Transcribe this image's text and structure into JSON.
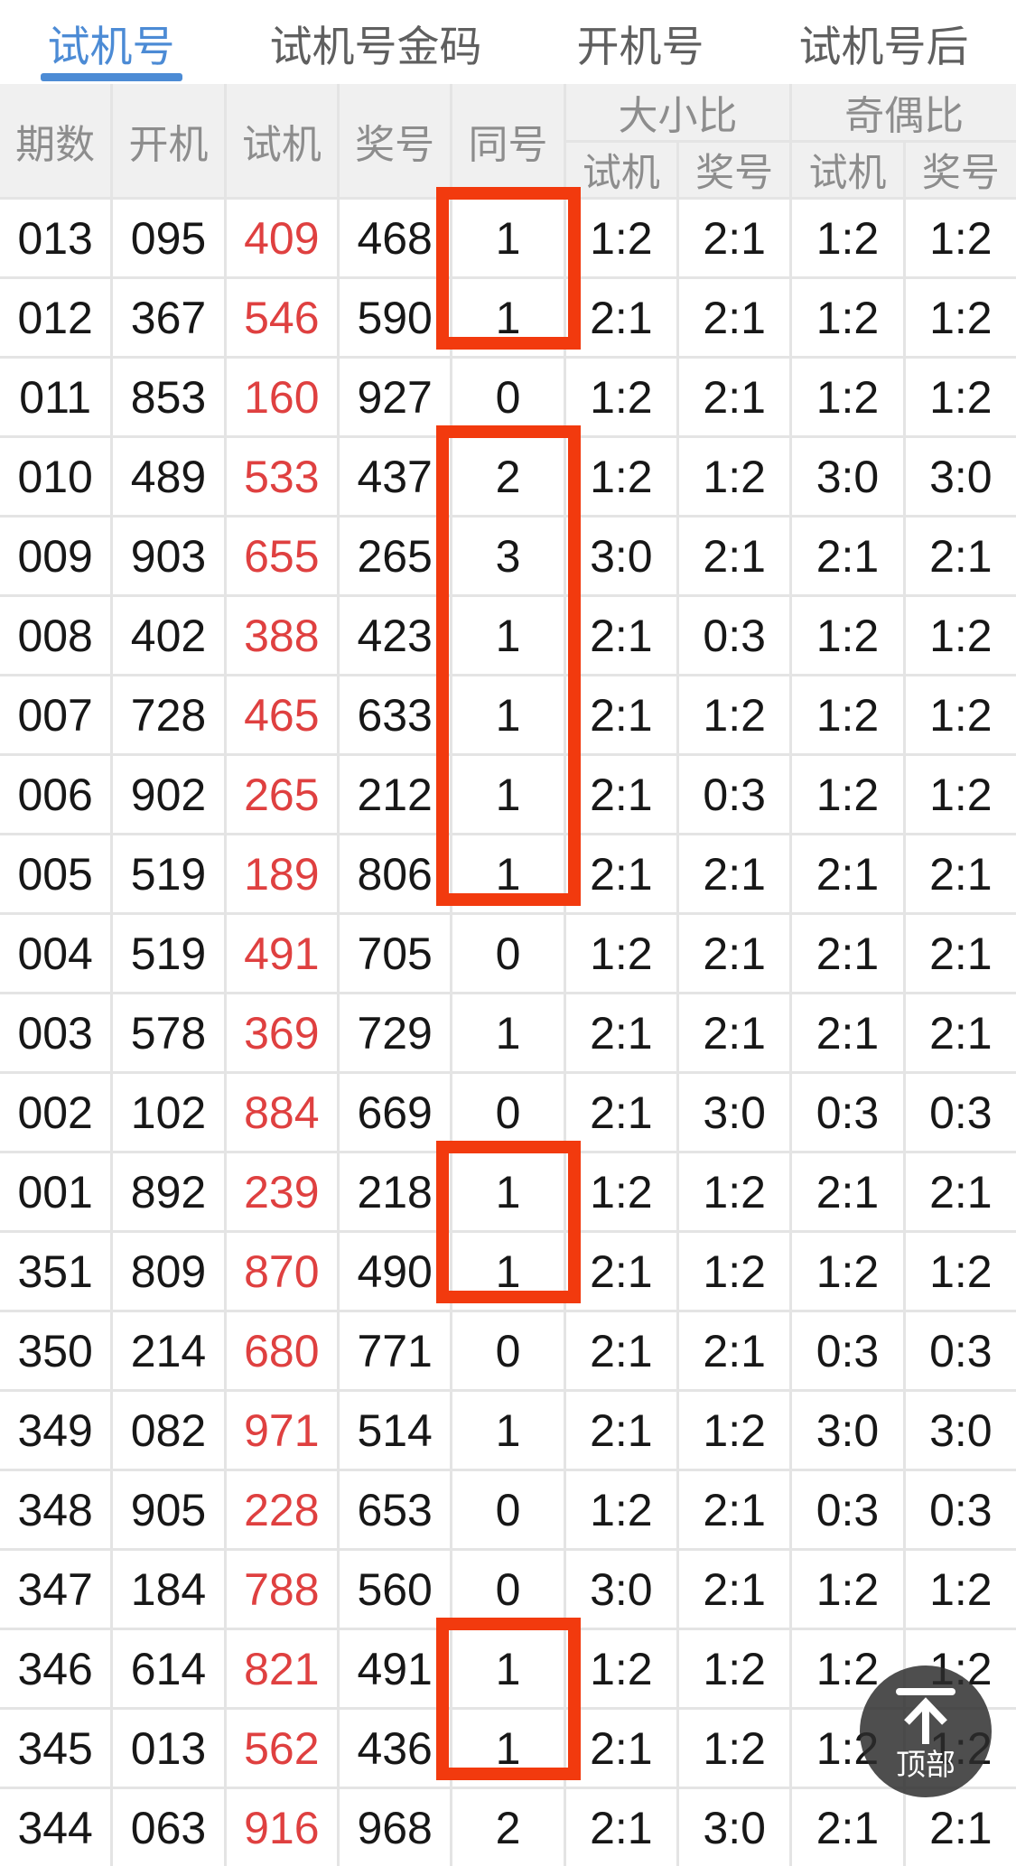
{
  "tabs": [
    {
      "label": "试机号",
      "active": true
    },
    {
      "label": "试机号金码",
      "active": false
    },
    {
      "label": "开机号",
      "active": false
    },
    {
      "label": "试机号后",
      "active": false
    }
  ],
  "table": {
    "headers": {
      "period": "期数",
      "open": "开机",
      "trial": "试机",
      "prize": "奖号",
      "same": "同号",
      "group_bigsmall": "大小比",
      "group_oddeven": "奇偶比",
      "sub_bigsmall_trial": "试机",
      "sub_bigsmall_prize": "奖号",
      "sub_oddeven_trial": "试机",
      "sub_oddeven_prize": "奖号"
    },
    "rows": [
      [
        "013",
        "095",
        "409",
        "468",
        "1",
        "1:2",
        "2:1",
        "1:2",
        "1:2"
      ],
      [
        "012",
        "367",
        "546",
        "590",
        "1",
        "2:1",
        "2:1",
        "1:2",
        "1:2"
      ],
      [
        "011",
        "853",
        "160",
        "927",
        "0",
        "1:2",
        "2:1",
        "1:2",
        "1:2"
      ],
      [
        "010",
        "489",
        "533",
        "437",
        "2",
        "1:2",
        "1:2",
        "3:0",
        "3:0"
      ],
      [
        "009",
        "903",
        "655",
        "265",
        "3",
        "3:0",
        "2:1",
        "2:1",
        "2:1"
      ],
      [
        "008",
        "402",
        "388",
        "423",
        "1",
        "2:1",
        "0:3",
        "1:2",
        "1:2"
      ],
      [
        "007",
        "728",
        "465",
        "633",
        "1",
        "2:1",
        "1:2",
        "1:2",
        "1:2"
      ],
      [
        "006",
        "902",
        "265",
        "212",
        "1",
        "2:1",
        "0:3",
        "1:2",
        "1:2"
      ],
      [
        "005",
        "519",
        "189",
        "806",
        "1",
        "2:1",
        "2:1",
        "2:1",
        "2:1"
      ],
      [
        "004",
        "519",
        "491",
        "705",
        "0",
        "1:2",
        "2:1",
        "2:1",
        "2:1"
      ],
      [
        "003",
        "578",
        "369",
        "729",
        "1",
        "2:1",
        "2:1",
        "2:1",
        "2:1"
      ],
      [
        "002",
        "102",
        "884",
        "669",
        "0",
        "2:1",
        "3:0",
        "0:3",
        "0:3"
      ],
      [
        "001",
        "892",
        "239",
        "218",
        "1",
        "1:2",
        "1:2",
        "2:1",
        "2:1"
      ],
      [
        "351",
        "809",
        "870",
        "490",
        "1",
        "2:1",
        "1:2",
        "1:2",
        "1:2"
      ],
      [
        "350",
        "214",
        "680",
        "771",
        "0",
        "2:1",
        "2:1",
        "0:3",
        "0:3"
      ],
      [
        "349",
        "082",
        "971",
        "514",
        "1",
        "2:1",
        "1:2",
        "3:0",
        "3:0"
      ],
      [
        "348",
        "905",
        "228",
        "653",
        "0",
        "1:2",
        "2:1",
        "0:3",
        "0:3"
      ],
      [
        "347",
        "184",
        "788",
        "560",
        "0",
        "3:0",
        "2:1",
        "1:2",
        "1:2"
      ],
      [
        "346",
        "614",
        "821",
        "491",
        "1",
        "1:2",
        "1:2",
        "1:2",
        "1:2"
      ],
      [
        "345",
        "013",
        "562",
        "436",
        "1",
        "2:1",
        "1:2",
        "1:2",
        "1:2"
      ],
      [
        "344",
        "063",
        "916",
        "968",
        "2",
        "2:1",
        "3:0",
        "2:1",
        "2:1"
      ]
    ],
    "trial_column_color": "#df4040"
  },
  "highlights": {
    "color": "#f23a0e",
    "column": "同号",
    "boxes": [
      {
        "from_row": 0,
        "to_row": 1
      },
      {
        "from_row": 3,
        "to_row": 8
      },
      {
        "from_row": 12,
        "to_row": 13
      },
      {
        "from_row": 18,
        "to_row": 19
      }
    ]
  },
  "back_to_top": {
    "label": "顶部",
    "icon": "arrow-up-to-top"
  },
  "colors": {
    "accent_blue": "#4c8bd5",
    "header_text": "#8d8d8d",
    "body_text": "#171717"
  }
}
